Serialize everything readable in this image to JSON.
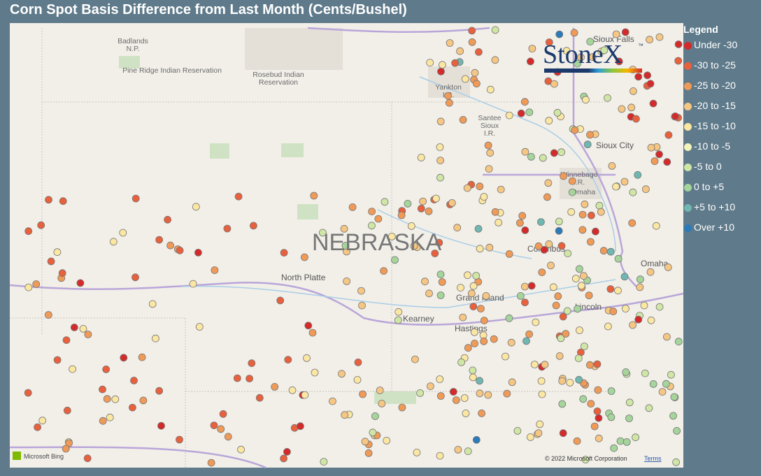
{
  "header": {
    "title": "Corn Spot Basis Difference from Last Month (Cents/Bushel)"
  },
  "map": {
    "labels": {
      "badlands": "Badlands\nN.P.",
      "pine_ridge": "Pine Ridge Indian Reservation",
      "rosebud": "Rosebud Indian\nReservation",
      "yankton": "Yankton\nI.R.",
      "santee": "Santee\nSioux\nI.R.",
      "winnebago": "Winnebago\nI.R.",
      "omaha_ir": "Omaha",
      "sioux_city": "Sioux City",
      "sioux_falls": "Sioux Falls",
      "state": "NEBRASKA",
      "north_platte": "North Platte",
      "columbus": "Columbus",
      "omaha": "Omaha",
      "grand_island": "Grand Island",
      "kearney": "Kearney",
      "hastings": "Hastings",
      "lincoln": "Lincoln"
    },
    "attribution": {
      "bing": "Microsoft Bing",
      "copyright": "© 2022 Microsoft Corporation",
      "terms": "Terms"
    }
  },
  "logo": {
    "text": "StoneX",
    "tm": "™"
  },
  "legend": {
    "title": "Legend",
    "items": [
      {
        "label": "Under -30",
        "color": "#d42a2a"
      },
      {
        "label": "-30 to -25",
        "color": "#e8603c"
      },
      {
        "label": "-25 to -20",
        "color": "#f09a57"
      },
      {
        "label": "-20 to -15",
        "color": "#f6c683"
      },
      {
        "label": "-15 to -10",
        "color": "#fbe6a2"
      },
      {
        "label": "-10 to -5",
        "color": "#f5f3b8"
      },
      {
        "label": "-5 to 0",
        "color": "#cfe6a5"
      },
      {
        "label": "0 to +5",
        "color": "#a5d59a"
      },
      {
        "label": "+5 to +10",
        "color": "#6fb7b0"
      },
      {
        "label": "Over +10",
        "color": "#2b7bb9"
      }
    ]
  }
}
